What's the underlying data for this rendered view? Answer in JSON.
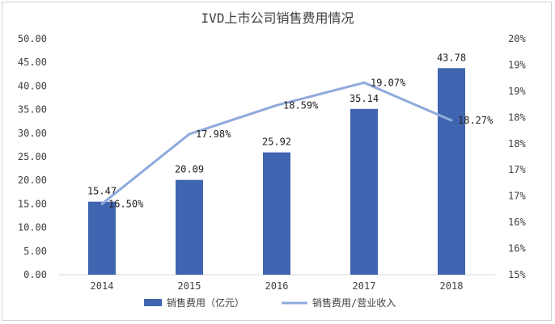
{
  "chart_data": {
    "type": "bar",
    "title": "IVD上市公司销售费用情况",
    "categories": [
      "2014",
      "2015",
      "2016",
      "2017",
      "2018"
    ],
    "series": [
      {
        "name": "销售费用（亿元）",
        "type": "bar",
        "axis": "left",
        "color": "#4065b0",
        "values": [
          15.47,
          20.09,
          25.92,
          35.14,
          43.78
        ],
        "labels": [
          "15.47",
          "20.09",
          "25.92",
          "35.14",
          "43.78"
        ]
      },
      {
        "name": "销售费用/营业收入",
        "type": "line",
        "axis": "right",
        "color": "#8faadc",
        "values": [
          16.5,
          17.98,
          18.59,
          19.07,
          18.27
        ],
        "labels": [
          "16.50%",
          "17.98%",
          "18.59%",
          "19.07%",
          "18.27%"
        ]
      }
    ],
    "left_axis": {
      "ylim": [
        0,
        50
      ],
      "ticks": [
        "0.00",
        "5.00",
        "10.00",
        "15.00",
        "20.00",
        "25.00",
        "30.00",
        "35.00",
        "40.00",
        "45.00",
        "50.00"
      ]
    },
    "right_axis": {
      "ylim": [
        15,
        20
      ],
      "ticks": [
        "15%",
        "16%",
        "16%",
        "17%",
        "17%",
        "18%",
        "18%",
        "19%",
        "19%",
        "20%"
      ]
    },
    "grid": false,
    "legend_position": "bottom"
  }
}
